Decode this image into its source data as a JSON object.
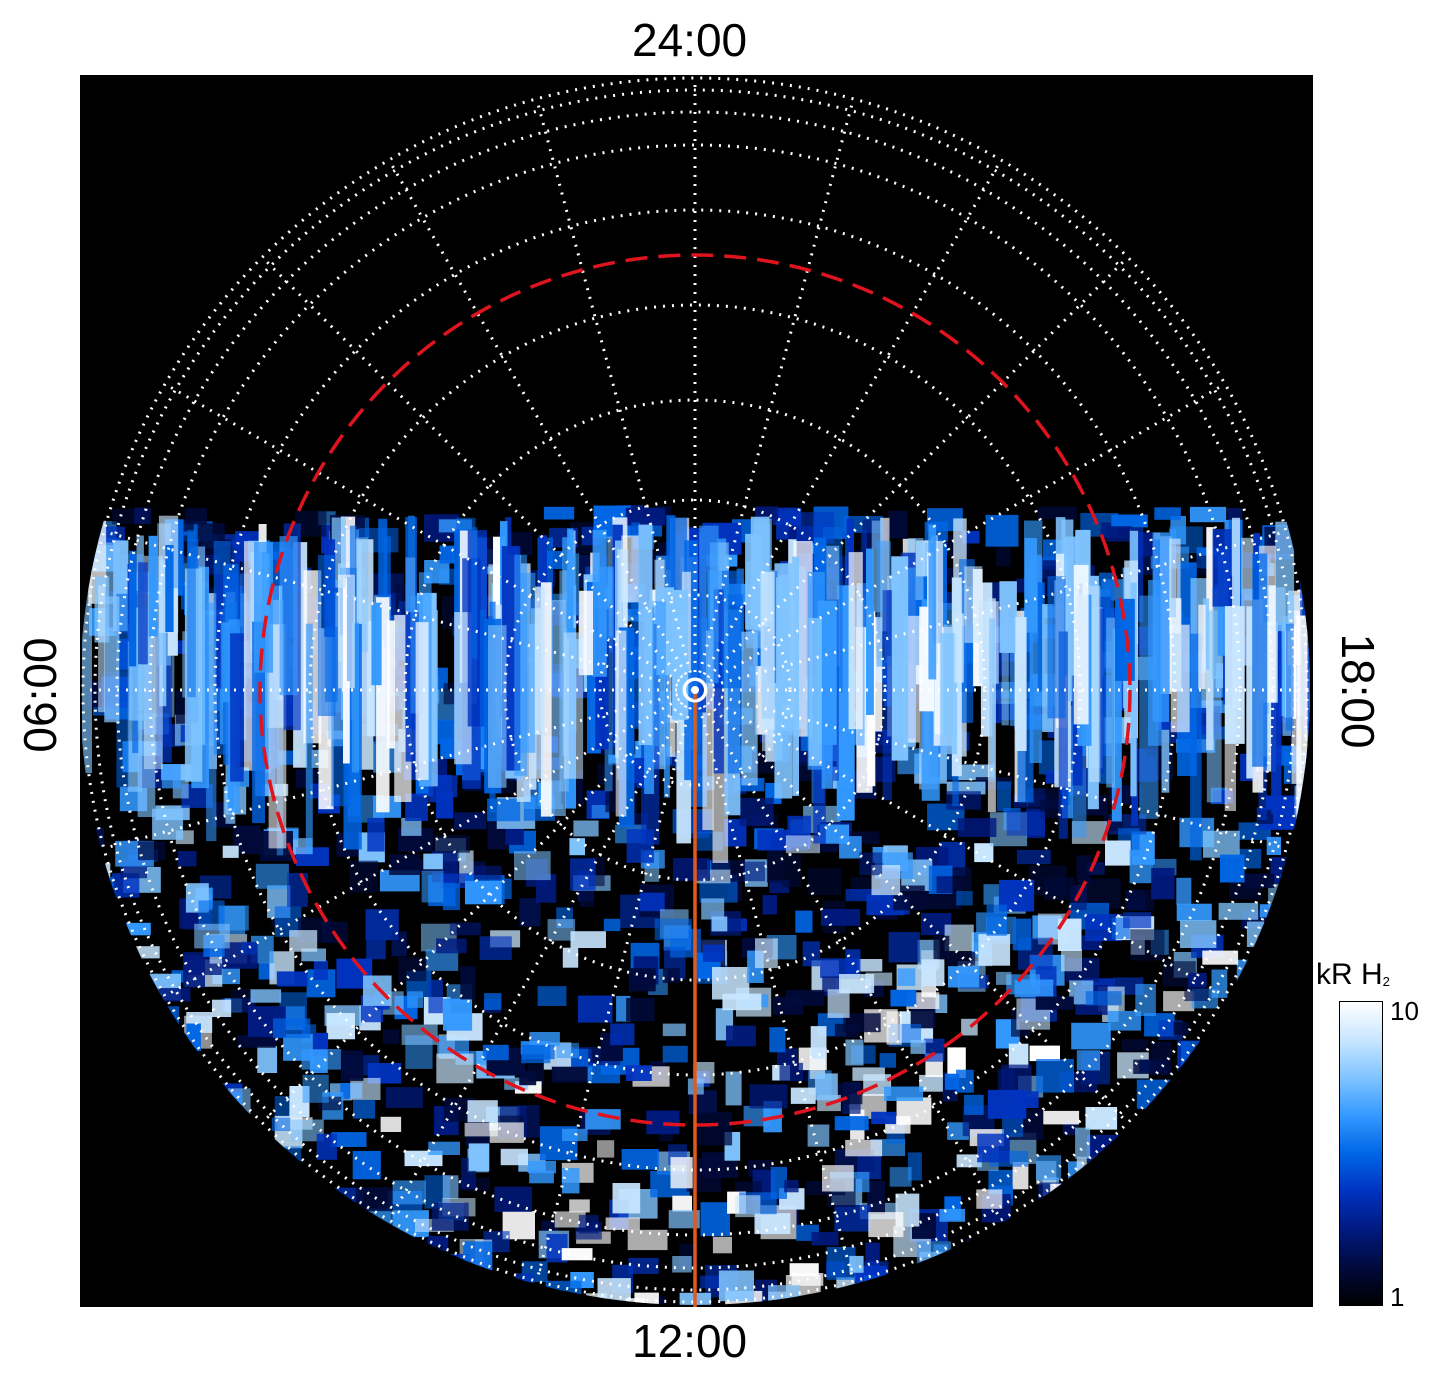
{
  "local_time_labels": {
    "top": "24:00",
    "bottom": "12:00",
    "left": "06:00",
    "right": "18:00"
  },
  "colorbar": {
    "title": "kR H",
    "title_subscript": "2",
    "max_label": "10",
    "min_label": "1",
    "scale": "log",
    "range": [
      1,
      10
    ],
    "colors": [
      "#000000",
      "#000a3c",
      "#001a80",
      "#0033c0",
      "#0066e6",
      "#3399ff",
      "#80c4ff",
      "#c8e6ff",
      "#ffffff"
    ]
  },
  "overlay_colors": {
    "grid": "#ffffff",
    "reference_circle": "#e0141e",
    "meridian_line": "#e05a1e"
  }
}
